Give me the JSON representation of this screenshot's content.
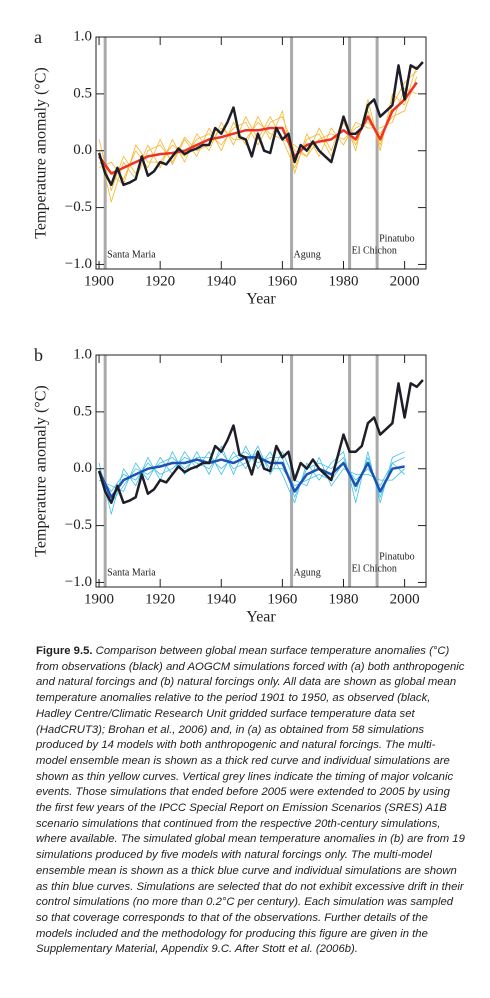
{
  "chart_data": [
    {
      "type": "line",
      "panel": "a",
      "ylabel": "Temperature anomaly (°C)",
      "xlabel": "Year",
      "xlim": [
        1899,
        2007
      ],
      "ylim": [
        -1.04,
        1.0
      ],
      "xticks": [
        1900,
        1920,
        1940,
        1960,
        1980,
        2000
      ],
      "yticks": [
        {
          "value": -1.0,
          "label": "−1.0"
        },
        {
          "value": -0.5,
          "label": "−0.5"
        },
        {
          "value": 0.0,
          "label": "0.0"
        },
        {
          "value": 0.5,
          "label": "0.5"
        },
        {
          "value": 1.0,
          "label": "1.0"
        }
      ],
      "volcanoes": [
        {
          "label": "Santa Maria",
          "year": 1902
        },
        {
          "label": "Agung",
          "year": 1963
        },
        {
          "label": "El Chichon",
          "year": 1982
        },
        {
          "label": "Pinatubo",
          "year": 1991
        }
      ],
      "series": [
        {
          "color": "#f8b52a",
          "line_width": 0.8,
          "x": [
            1900,
            1904,
            1908,
            1912,
            1916,
            1920,
            1924,
            1928,
            1932,
            1936,
            1940,
            1944,
            1948,
            1952,
            1956,
            1960,
            1964,
            1968,
            1972,
            1976,
            1980,
            1984,
            1988,
            1992,
            1996,
            2000,
            2004
          ],
          "values": [
            0.1,
            -0.35,
            -0.05,
            -0.2,
            0.05,
            -0.15,
            0.1,
            -0.1,
            0.15,
            0.0,
            0.25,
            0.05,
            0.3,
            0.1,
            0.3,
            0.1,
            0.05,
            -0.05,
            0.2,
            0.0,
            0.3,
            0.0,
            0.45,
            0.0,
            0.5,
            0.4,
            0.75
          ]
        },
        {
          "color": "#f8b52a",
          "line_width": 0.8,
          "x": [
            1900,
            1904,
            1908,
            1912,
            1916,
            1920,
            1924,
            1928,
            1932,
            1936,
            1940,
            1944,
            1948,
            1952,
            1956,
            1960,
            1964,
            1968,
            1972,
            1976,
            1980,
            1984,
            1988,
            1992,
            1996,
            2000,
            2004
          ],
          "values": [
            -0.15,
            -0.1,
            -0.25,
            0.0,
            -0.15,
            0.1,
            -0.12,
            0.1,
            -0.05,
            0.2,
            0.0,
            0.25,
            0.05,
            0.3,
            0.1,
            0.35,
            -0.2,
            0.15,
            -0.05,
            0.2,
            0.05,
            0.25,
            0.2,
            0.2,
            0.25,
            0.55,
            0.5
          ]
        },
        {
          "color": "#f8b52a",
          "line_width": 0.8,
          "x": [
            1900,
            1904,
            1908,
            1912,
            1916,
            1920,
            1924,
            1928,
            1932,
            1936,
            1940,
            1944,
            1948,
            1952,
            1956,
            1960,
            1964,
            1968,
            1972,
            1976,
            1980,
            1984,
            1988,
            1992,
            1996,
            2000,
            2004
          ],
          "values": [
            0.0,
            -0.45,
            -0.1,
            -0.25,
            0.0,
            0.05,
            -0.1,
            0.12,
            0.0,
            0.05,
            0.2,
            0.1,
            0.1,
            0.25,
            0.15,
            0.1,
            -0.15,
            0.1,
            0.15,
            -0.05,
            0.25,
            0.05,
            0.35,
            0.05,
            0.4,
            0.6,
            0.7
          ]
        },
        {
          "color": "#f8b52a",
          "line_width": 0.8,
          "x": [
            1900,
            1904,
            1908,
            1912,
            1916,
            1920,
            1924,
            1928,
            1932,
            1936,
            1940,
            1944,
            1948,
            1952,
            1956,
            1960,
            1964,
            1968,
            1972,
            1976,
            1980,
            1984,
            1988,
            1992,
            1996,
            2000,
            2004
          ],
          "values": [
            -0.1,
            -0.2,
            -0.3,
            0.05,
            -0.1,
            -0.1,
            0.05,
            -0.05,
            0.1,
            0.15,
            0.05,
            0.2,
            0.25,
            0.05,
            0.25,
            0.3,
            0.0,
            -0.05,
            0.1,
            0.15,
            0.1,
            0.2,
            0.25,
            0.15,
            0.3,
            0.35,
            0.65
          ]
        },
        {
          "color": "#ee3322",
          "line_width": 2.5,
          "x": [
            1900,
            1904,
            1908,
            1912,
            1916,
            1920,
            1924,
            1928,
            1932,
            1936,
            1940,
            1944,
            1948,
            1952,
            1956,
            1960,
            1964,
            1968,
            1972,
            1976,
            1980,
            1984,
            1988,
            1992,
            1996,
            2000,
            2004
          ],
          "values": [
            -0.05,
            -0.2,
            -0.15,
            -0.1,
            -0.05,
            -0.03,
            -0.02,
            0.0,
            0.05,
            0.1,
            0.12,
            0.15,
            0.18,
            0.18,
            0.2,
            0.2,
            -0.05,
            0.05,
            0.08,
            0.1,
            0.18,
            0.1,
            0.3,
            0.1,
            0.35,
            0.45,
            0.6
          ]
        },
        {
          "color": "#1e1e28",
          "line_width": 2.5,
          "x": [
            1900,
            1902,
            1904,
            1906,
            1908,
            1910,
            1912,
            1914,
            1916,
            1918,
            1920,
            1922,
            1924,
            1926,
            1928,
            1930,
            1932,
            1934,
            1936,
            1938,
            1940,
            1942,
            1944,
            1946,
            1948,
            1950,
            1952,
            1954,
            1956,
            1958,
            1960,
            1962,
            1964,
            1966,
            1968,
            1970,
            1972,
            1974,
            1976,
            1978,
            1980,
            1982,
            1984,
            1986,
            1988,
            1990,
            1992,
            1994,
            1996,
            1998,
            2000,
            2002,
            2004,
            2006
          ],
          "values": [
            -0.02,
            -0.2,
            -0.3,
            -0.15,
            -0.3,
            -0.28,
            -0.25,
            -0.05,
            -0.22,
            -0.18,
            -0.1,
            -0.12,
            -0.05,
            0.02,
            -0.03,
            0.0,
            0.02,
            0.05,
            0.05,
            0.2,
            0.15,
            0.25,
            0.38,
            0.12,
            0.1,
            -0.05,
            0.15,
            0.0,
            -0.02,
            0.2,
            0.1,
            0.15,
            -0.1,
            0.05,
            0.0,
            0.08,
            0.0,
            -0.05,
            -0.1,
            0.1,
            0.3,
            0.15,
            0.15,
            0.2,
            0.4,
            0.45,
            0.3,
            0.35,
            0.4,
            0.75,
            0.45,
            0.75,
            0.72,
            0.78
          ]
        }
      ]
    },
    {
      "type": "line",
      "panel": "b",
      "ylabel": "Temperature anomaly (°C)",
      "xlabel": "Year",
      "xlim": [
        1899,
        2007
      ],
      "ylim": [
        -1.04,
        1.0
      ],
      "xticks": [
        1900,
        1920,
        1940,
        1960,
        1980,
        2000
      ],
      "yticks": [
        {
          "value": -1.0,
          "label": "−1.0"
        },
        {
          "value": -0.5,
          "label": "−0.5"
        },
        {
          "value": 0.0,
          "label": "0.0"
        },
        {
          "value": 0.5,
          "label": "0.5"
        },
        {
          "value": 1.0,
          "label": "1.0"
        }
      ],
      "volcanoes": [
        {
          "label": "Santa Maria",
          "year": 1902
        },
        {
          "label": "Agung",
          "year": 1963
        },
        {
          "label": "El Chichon",
          "year": 1982
        },
        {
          "label": "Pinatubo",
          "year": 1991
        }
      ],
      "series": [
        {
          "color": "#3cc0ec",
          "line_width": 0.8,
          "x": [
            1900,
            1904,
            1908,
            1912,
            1916,
            1920,
            1924,
            1928,
            1932,
            1936,
            1940,
            1944,
            1948,
            1952,
            1956,
            1960,
            1964,
            1968,
            1972,
            1976,
            1980,
            1984,
            1988,
            1992,
            1996,
            2000
          ],
          "values": [
            0.05,
            -0.4,
            0.0,
            -0.15,
            0.1,
            -0.1,
            0.15,
            -0.05,
            0.15,
            -0.05,
            0.2,
            -0.05,
            0.2,
            0.0,
            0.15,
            -0.05,
            -0.3,
            0.05,
            -0.1,
            0.05,
            0.15,
            -0.3,
            0.15,
            -0.3,
            0.1,
            0.15
          ]
        },
        {
          "color": "#3cc0ec",
          "line_width": 0.8,
          "x": [
            1900,
            1904,
            1908,
            1912,
            1916,
            1920,
            1924,
            1928,
            1932,
            1936,
            1940,
            1944,
            1948,
            1952,
            1956,
            1960,
            1964,
            1968,
            1972,
            1976,
            1980,
            1984,
            1988,
            1992,
            1996,
            2000
          ],
          "values": [
            -0.1,
            -0.15,
            -0.2,
            0.05,
            -0.1,
            0.1,
            -0.05,
            0.15,
            0.0,
            0.15,
            -0.05,
            0.15,
            0.0,
            0.2,
            -0.05,
            0.15,
            -0.1,
            -0.15,
            0.1,
            -0.15,
            0.0,
            -0.05,
            -0.05,
            -0.1,
            -0.1,
            0.0
          ]
        },
        {
          "color": "#3cc0ec",
          "line_width": 0.8,
          "x": [
            1900,
            1904,
            1908,
            1912,
            1916,
            1920,
            1924,
            1928,
            1932,
            1936,
            1940,
            1944,
            1948,
            1952,
            1956,
            1960,
            1964,
            1968,
            1972,
            1976,
            1980,
            1984,
            1988,
            1992,
            1996,
            2000
          ],
          "values": [
            0.0,
            -0.3,
            -0.15,
            0.0,
            -0.05,
            0.05,
            0.1,
            0.0,
            0.1,
            0.1,
            0.0,
            0.1,
            0.15,
            0.05,
            0.1,
            0.1,
            -0.25,
            0.0,
            0.05,
            0.0,
            0.1,
            -0.2,
            0.1,
            -0.25,
            0.05,
            -0.05
          ]
        },
        {
          "color": "#3cc0ec",
          "line_width": 0.8,
          "x": [
            1900,
            1904,
            1908,
            1912,
            1916,
            1920,
            1924,
            1928,
            1932,
            1936,
            1940,
            1944,
            1948,
            1952,
            1956,
            1960,
            1964,
            1968,
            1972,
            1976,
            1980,
            1984,
            1988,
            1992,
            1996,
            2000
          ],
          "values": [
            -0.05,
            -0.2,
            -0.05,
            -0.1,
            0.05,
            -0.05,
            0.0,
            0.1,
            0.05,
            0.0,
            0.15,
            0.0,
            0.05,
            0.15,
            0.0,
            0.0,
            -0.15,
            -0.1,
            -0.05,
            -0.1,
            0.05,
            -0.1,
            0.0,
            -0.15,
            0.05,
            0.1
          ]
        },
        {
          "color": "#1c52b4",
          "line_width": 2.5,
          "x": [
            1900,
            1904,
            1908,
            1912,
            1916,
            1920,
            1924,
            1928,
            1932,
            1936,
            1940,
            1944,
            1948,
            1952,
            1956,
            1960,
            1964,
            1968,
            1972,
            1976,
            1980,
            1984,
            1988,
            1992,
            1996,
            2000
          ],
          "values": [
            -0.02,
            -0.25,
            -0.1,
            -0.05,
            0.0,
            0.02,
            0.05,
            0.05,
            0.08,
            0.05,
            0.08,
            0.05,
            0.1,
            0.1,
            0.05,
            0.05,
            -0.2,
            -0.05,
            0.0,
            -0.05,
            0.05,
            -0.15,
            0.05,
            -0.2,
            0.0,
            0.02
          ]
        },
        {
          "color": "#1e1e28",
          "line_width": 2.5,
          "x": [
            1900,
            1902,
            1904,
            1906,
            1908,
            1910,
            1912,
            1914,
            1916,
            1918,
            1920,
            1922,
            1924,
            1926,
            1928,
            1930,
            1932,
            1934,
            1936,
            1938,
            1940,
            1942,
            1944,
            1946,
            1948,
            1950,
            1952,
            1954,
            1956,
            1958,
            1960,
            1962,
            1964,
            1966,
            1968,
            1970,
            1972,
            1974,
            1976,
            1978,
            1980,
            1982,
            1984,
            1986,
            1988,
            1990,
            1992,
            1994,
            1996,
            1998,
            2000,
            2002,
            2004,
            2006
          ],
          "values": [
            -0.02,
            -0.2,
            -0.3,
            -0.15,
            -0.3,
            -0.28,
            -0.25,
            -0.05,
            -0.22,
            -0.18,
            -0.1,
            -0.12,
            -0.05,
            0.02,
            -0.03,
            0.0,
            0.02,
            0.05,
            0.05,
            0.2,
            0.15,
            0.25,
            0.38,
            0.12,
            0.1,
            -0.05,
            0.15,
            0.0,
            -0.02,
            0.2,
            0.1,
            0.15,
            -0.1,
            0.05,
            0.0,
            0.08,
            0.0,
            -0.05,
            -0.1,
            0.1,
            0.3,
            0.15,
            0.15,
            0.2,
            0.4,
            0.45,
            0.3,
            0.35,
            0.4,
            0.75,
            0.45,
            0.75,
            0.72,
            0.78
          ]
        }
      ]
    }
  ],
  "caption": {
    "label": "Figure 9.5.",
    "text": "Comparison between global mean surface temperature anomalies (°C) from observations (black) and AOGCM simulations forced with (a) both anthropogenic and natural forcings and (b) natural forcings only. All data are shown as global mean temperature anomalies relative to the period 1901 to 1950, as observed (black, Hadley Centre/Climatic Research Unit gridded surface temperature data set (HadCRUT3); Brohan et al., 2006) and, in (a) as obtained from 58 simulations produced by 14 models with both anthropogenic and natural forcings. The multi-model ensemble mean is shown as a thick red curve and individual simulations are shown as thin yellow curves. Vertical grey lines indicate the timing of major volcanic events. Those simulations that ended before 2005 were extended to 2005 by using the first few years of the IPCC Special Report on Emission Scenarios (SRES) A1B scenario simulations that continued from the respective 20th-century simulations, where available. The simulated global mean temperature anomalies in (b) are from 19 simulations produced by five models with natural forcings only. The multi-model ensemble mean is shown as a thick blue curve and individual simulations are shown as thin blue curves. Simulations are selected that do not exhibit excessive drift in their control simulations (no more than 0.2°C per century). Each simulation was sampled so that coverage corresponds to that of the observations. Further details of the models included and the methodology for producing this figure are given in the Supplementary Material, Appendix 9.C. After Stott et al. (2006b)."
  }
}
